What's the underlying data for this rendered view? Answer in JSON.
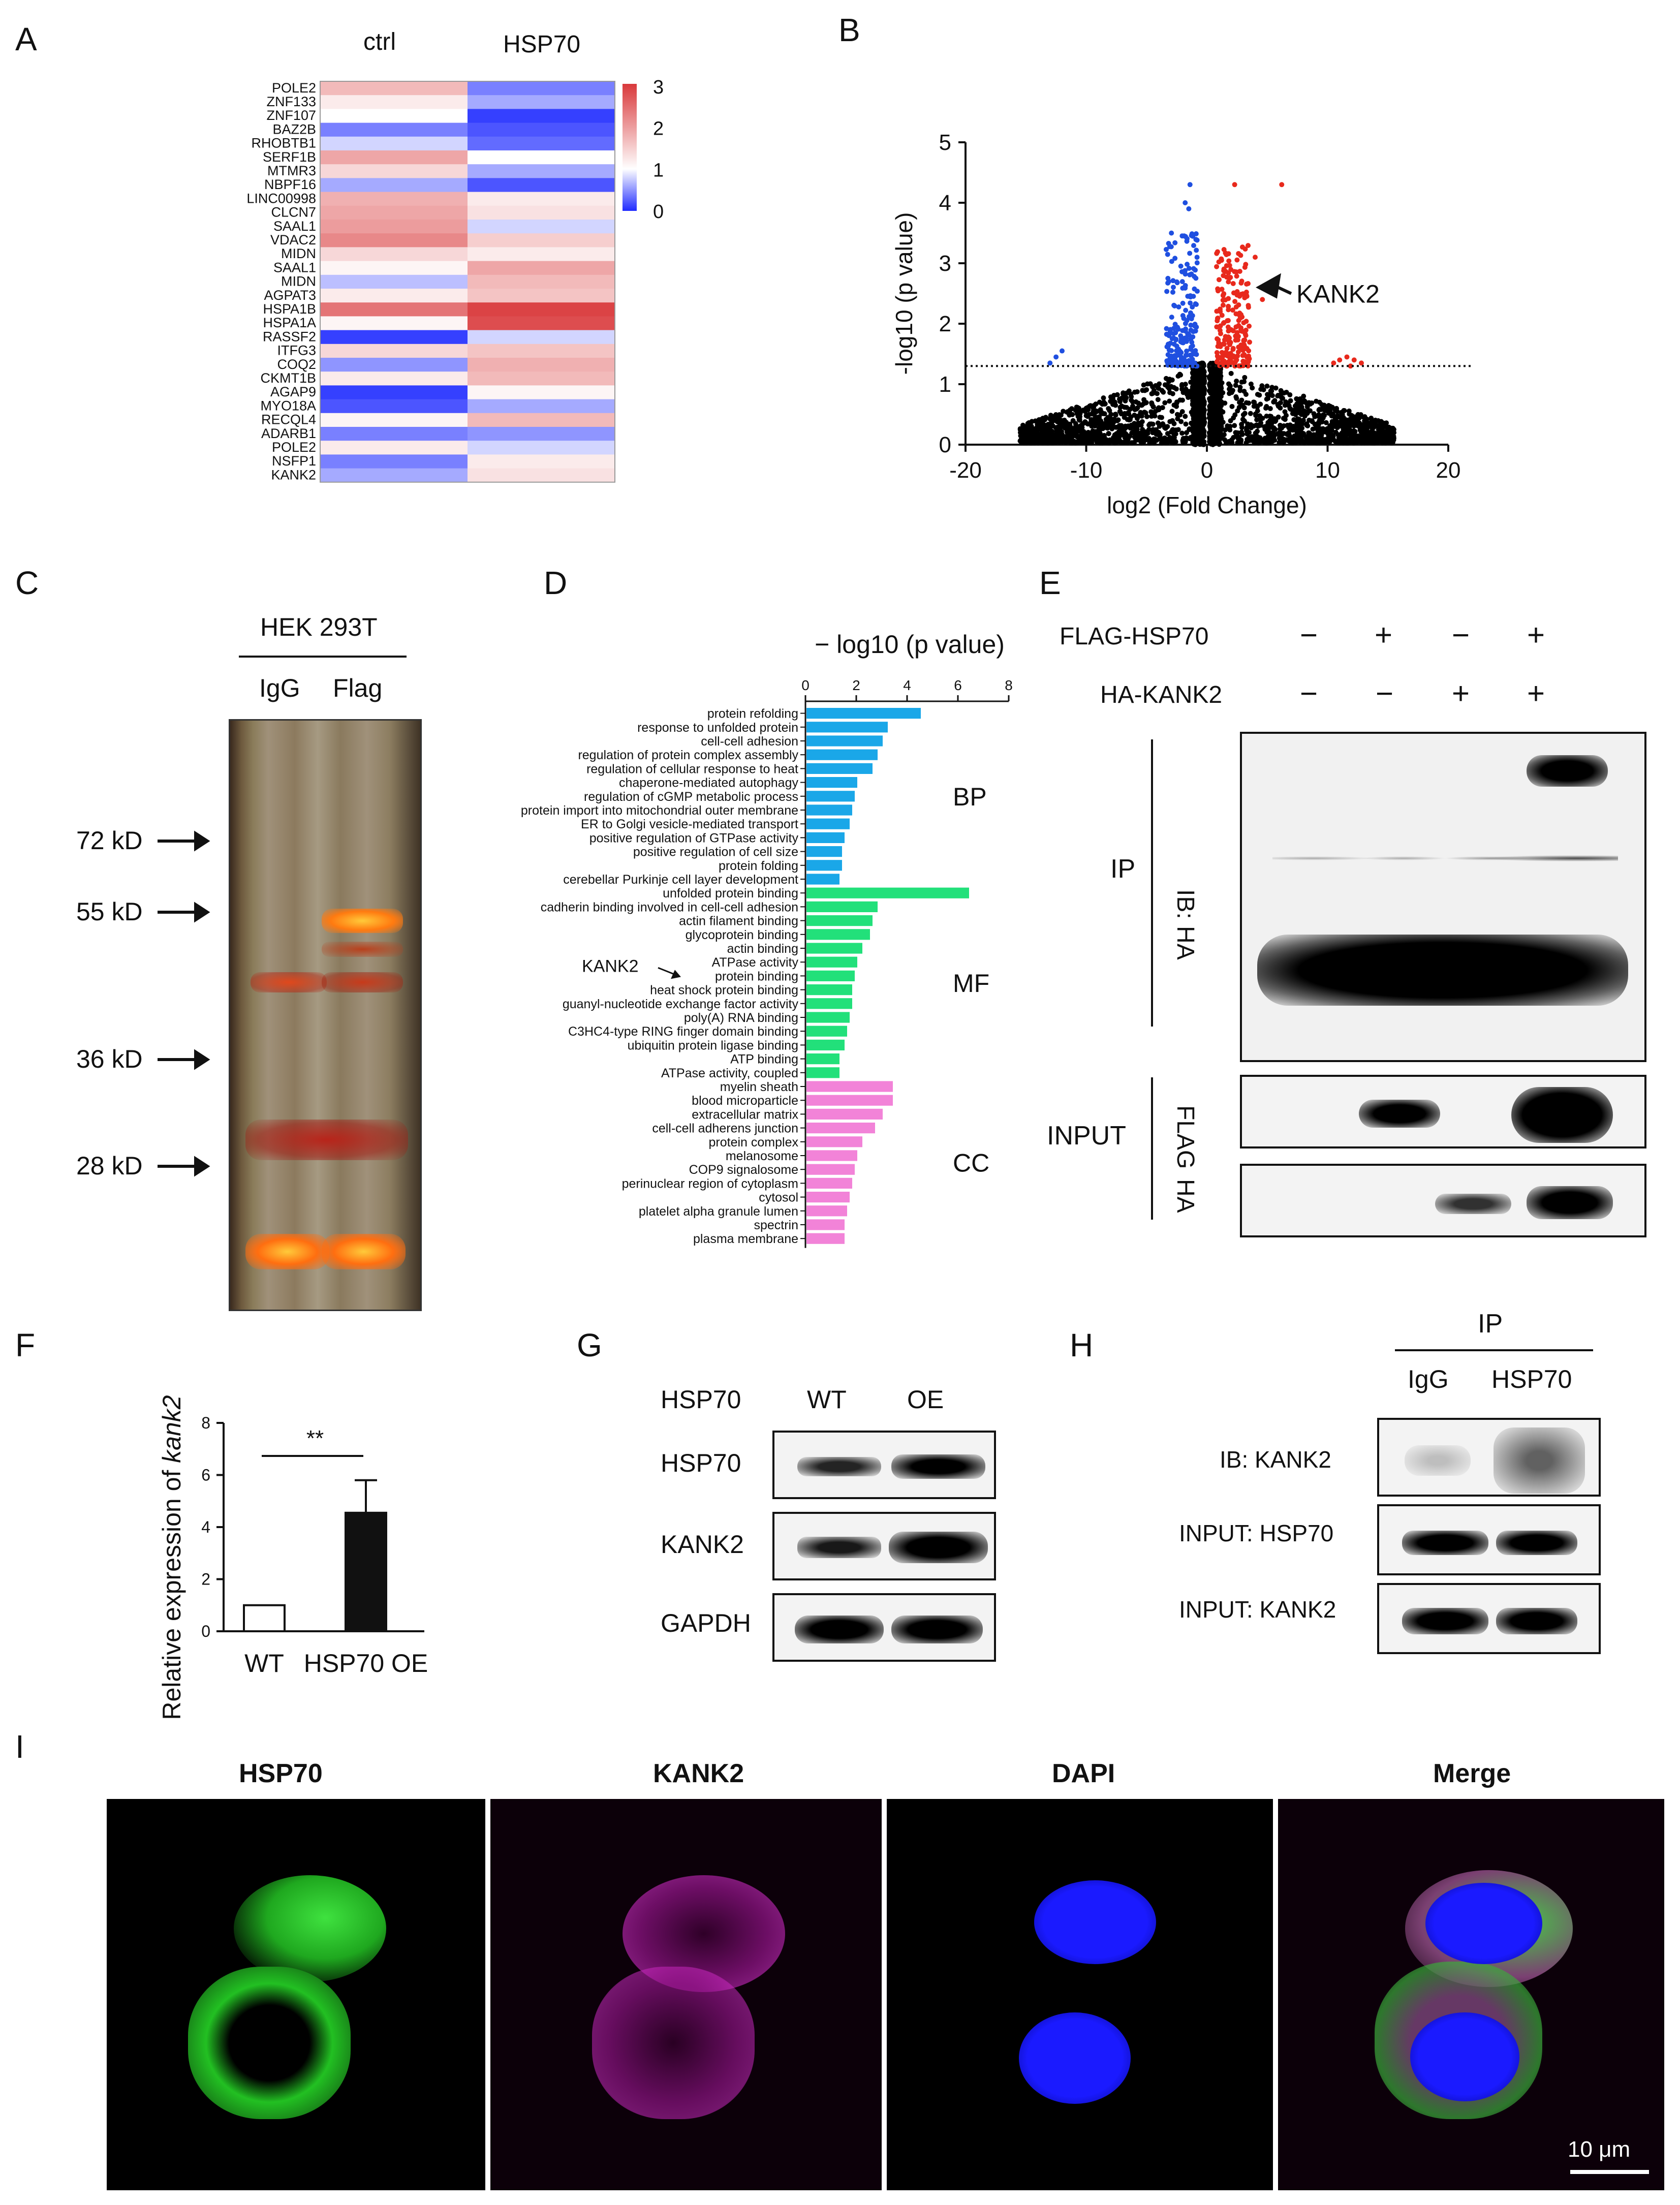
{
  "panel_labels": {
    "A": "A",
    "B": "B",
    "C": "C",
    "D": "D",
    "E": "E",
    "F": "F",
    "G": "G",
    "H": "H",
    "I": "I"
  },
  "panel_a": {
    "columns": [
      "ctrl",
      "HSP70"
    ],
    "genes": [
      "POLE2",
      "ZNF133",
      "ZNF107",
      "BAZ2B",
      "RHOBTB1",
      "SERF1B",
      "MTMR3",
      "NBPF16",
      "LINC00998",
      "CLCN7",
      "SAAL1",
      "VDAC2",
      "MIDN",
      "SAAL1",
      "MIDN",
      "AGPAT3",
      "HSPA1B",
      "HSPA1A",
      "RASSF2",
      "ITFG3",
      "COQ2",
      "CKMT1B",
      "AGAP9",
      "MYO18A",
      "RECQL4",
      "ADARB1",
      "POLE2",
      "NSFP1",
      "KANK2"
    ],
    "values_ctrl": [
      1.7,
      1.2,
      1.0,
      0.4,
      0.8,
      1.9,
      1.4,
      0.6,
      1.8,
      1.9,
      2.0,
      2.2,
      1.4,
      1.1,
      0.7,
      1.2,
      2.4,
      1.1,
      0.1,
      1.4,
      0.5,
      1.2,
      0.1,
      0.2,
      1.1,
      0.4,
      1.2,
      0.4,
      0.6
    ],
    "values_hsp70": [
      0.4,
      0.6,
      0.1,
      0.2,
      0.3,
      1.0,
      0.6,
      0.2,
      1.2,
      1.3,
      0.8,
      1.5,
      1.2,
      1.9,
      1.7,
      1.6,
      2.9,
      2.8,
      0.8,
      1.6,
      1.8,
      1.7,
      1.1,
      0.6,
      1.7,
      0.5,
      0.8,
      1.2,
      1.3
    ],
    "colorbar": {
      "ticks": [
        "3",
        "2",
        "1",
        "0"
      ],
      "min": 0,
      "max": 3,
      "low_color": "#1f2bff",
      "mid_color": "#ffffff",
      "high_color": "#d9393b"
    }
  },
  "panel_b": {
    "chart_data": {
      "type": "scatter",
      "xlabel": "log2 (Fold Change)",
      "ylabel": "-log10 (p value)",
      "xlim": [
        -20,
        20
      ],
      "ylim": [
        0,
        5
      ],
      "xticks": [
        "-20",
        "-10",
        "0",
        "10",
        "20"
      ],
      "yticks": [
        "0",
        "1",
        "2",
        "3",
        "4",
        "5"
      ],
      "threshold_y": 1.3,
      "annotation": "KANK2",
      "series": [
        {
          "color": "#000000",
          "desc": "not significant"
        },
        {
          "color": "#1f4fe0",
          "desc": "down"
        },
        {
          "color": "#e8291c",
          "desc": "up"
        }
      ],
      "annotation_point": {
        "x": 3.2,
        "y": 2.6
      }
    }
  },
  "panel_c": {
    "title": "HEK 293T",
    "lanes": [
      "IgG",
      "Flag"
    ],
    "markers": [
      "72 kD",
      "55 kD",
      "36 kD",
      "28 kD"
    ]
  },
  "panel_d": {
    "chart_data": {
      "type": "bar",
      "title": "− log10 (p value)",
      "xticks": [
        "0",
        "2",
        "4",
        "6",
        "8"
      ],
      "xlim": [
        0,
        8
      ],
      "groups": [
        {
          "name": "BP",
          "color": "#1aa7e8",
          "terms": [
            "protein refolding",
            "response to unfolded protein",
            "cell-cell adhesion",
            "regulation of protein complex assembly",
            "regulation of cellular response to heat",
            "chaperone-mediated autophagy",
            "regulation of cGMP metabolic process",
            "protein import into mitochondrial outer membrane",
            "ER to Golgi vesicle-mediated transport",
            "positive regulation of GTPase activity",
            "positive regulation of cell size",
            "protein folding",
            "cerebellar Purkinje cell layer development"
          ],
          "values": [
            4.5,
            3.2,
            3.0,
            2.8,
            2.6,
            2.0,
            1.9,
            1.8,
            1.7,
            1.5,
            1.4,
            1.4,
            1.3
          ]
        },
        {
          "name": "MF",
          "color": "#22e07a",
          "terms": [
            "unfolded protein binding",
            "cadherin binding involved in cell-cell adhesion",
            "actin filament binding",
            "glycoprotein binding",
            "actin binding",
            "ATPase activity",
            "protein binding",
            "heat shock protein binding",
            "guanyl-nucleotide exchange factor activity",
            "poly(A) RNA binding",
            "C3HC4-type RING finger domain binding",
            "ubiquitin protein ligase binding",
            "ATP binding",
            "ATPase activity, coupled"
          ],
          "values": [
            6.4,
            2.8,
            2.6,
            2.5,
            2.2,
            2.0,
            1.9,
            1.8,
            1.8,
            1.7,
            1.6,
            1.5,
            1.3,
            1.3
          ]
        },
        {
          "name": "CC",
          "color": "#f283d8",
          "terms": [
            "myelin sheath",
            "blood microparticle",
            "extracellular matrix",
            "cell-cell adherens junction",
            "protein complex",
            "melanosome",
            "COP9 signalosome",
            "perinuclear region of cytoplasm",
            "cytosol",
            "platelet alpha granule lumen",
            "spectrin",
            "plasma membrane"
          ],
          "values": [
            3.4,
            3.4,
            3.0,
            2.7,
            2.2,
            2.0,
            1.9,
            1.8,
            1.7,
            1.6,
            1.5,
            1.5
          ]
        }
      ],
      "annotation": "KANK2"
    }
  },
  "panel_e": {
    "row_labels": [
      "FLAG-HSP70",
      "HA-KANK2"
    ],
    "flag_hsp70": [
      "−",
      "+",
      "−",
      "+"
    ],
    "ha_kank2": [
      "−",
      "−",
      "+",
      "+"
    ],
    "ip_label": "IP",
    "ib_label": "IB: HA",
    "input_label": "INPUT",
    "flag_label": "FLAG",
    "ha_label": "HA"
  },
  "panel_f": {
    "chart_data": {
      "type": "bar",
      "ylabel_prefix": "Relative expression of ",
      "ylabel_gene": "kank2",
      "categories": [
        "WT",
        "HSP70 OE"
      ],
      "values": [
        1.0,
        4.55
      ],
      "errors": [
        0,
        1.25
      ],
      "ylim": [
        0,
        8
      ],
      "yticks": [
        "0",
        "2",
        "4",
        "6",
        "8"
      ],
      "significance": "**"
    }
  },
  "panel_g": {
    "header": "HSP70",
    "lanes": [
      "WT",
      "OE"
    ],
    "rows": [
      "HSP70",
      "KANK2",
      "GAPDH"
    ]
  },
  "panel_h": {
    "ip": "IP",
    "lanes": [
      "IgG",
      "HSP70"
    ],
    "rows": [
      "IB: KANK2",
      "INPUT: HSP70",
      "INPUT: KANK2"
    ]
  },
  "panel_i": {
    "channels": [
      "HSP70",
      "KANK2",
      "DAPI",
      "Merge"
    ],
    "scale_bar": "10 μm"
  }
}
